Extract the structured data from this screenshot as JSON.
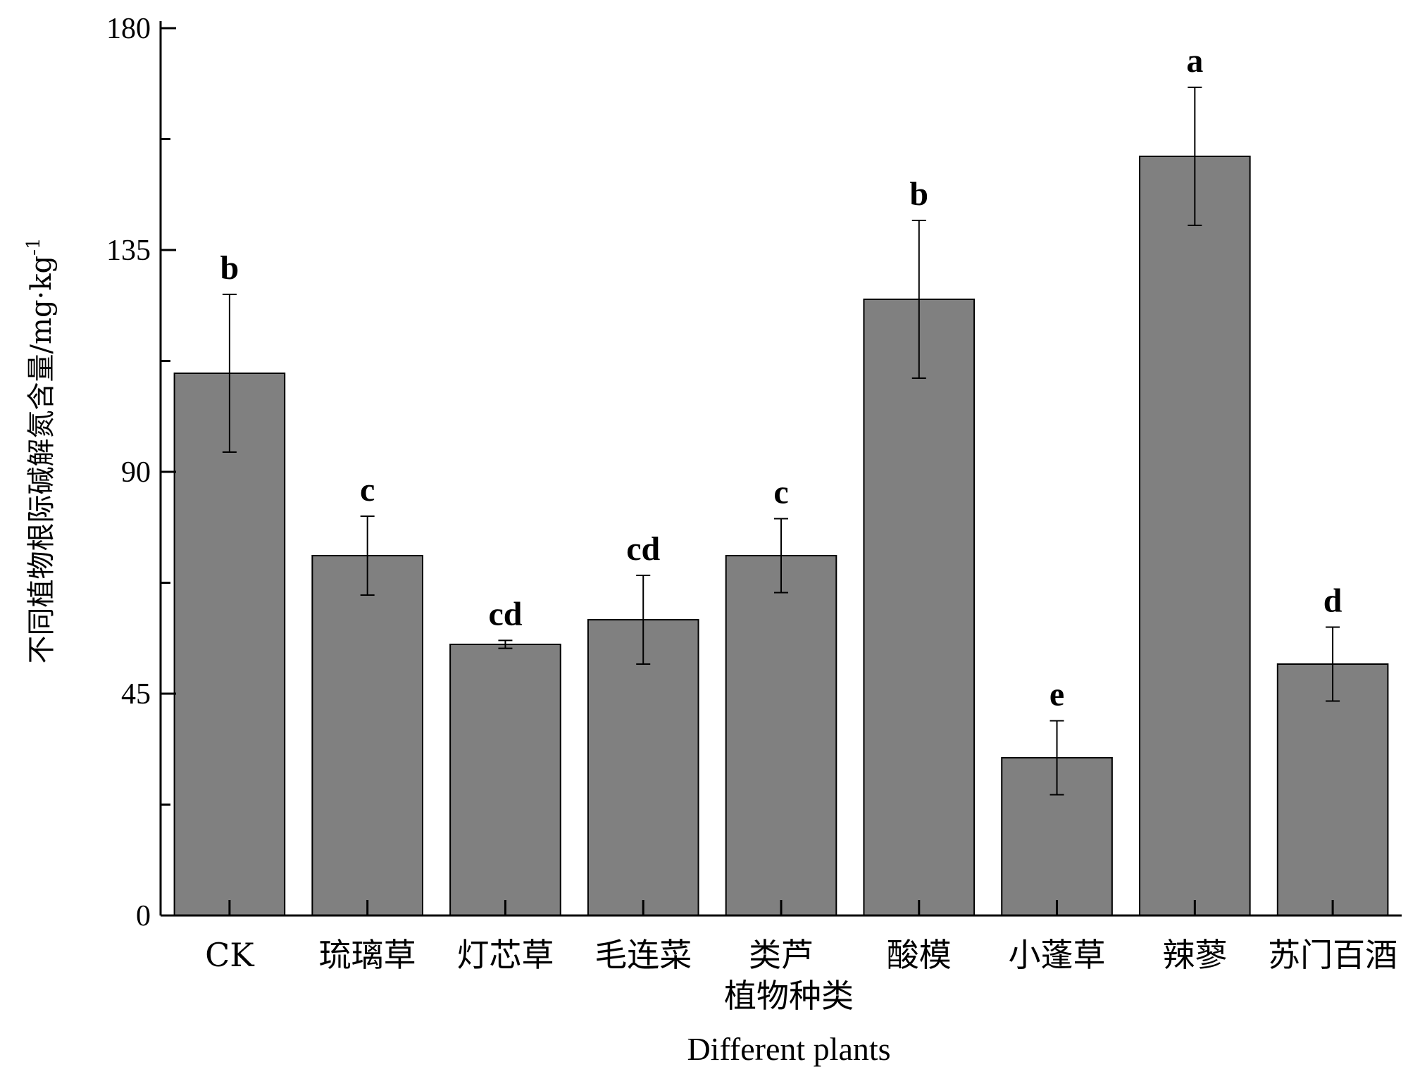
{
  "chart_data": {
    "type": "bar",
    "categories": [
      "CK",
      "琉璃草",
      "灯芯草",
      "毛连菜",
      "类芦",
      "酸模",
      "小蓬草",
      "辣蓼",
      "苏门百酒"
    ],
    "values": [
      110,
      73,
      55,
      60,
      73,
      125,
      32,
      154,
      51
    ],
    "error": [
      16,
      8,
      0.8,
      9,
      7.5,
      16,
      7.5,
      14,
      7.5
    ],
    "significance": [
      "b",
      "c",
      "cd",
      "cd",
      "c",
      "b",
      "e",
      "a",
      "d"
    ],
    "ylim": [
      0,
      180
    ],
    "yticks": [
      0,
      45,
      90,
      135,
      180
    ],
    "minor_step": 22.5,
    "xlabel_cn": "植物种类",
    "xlabel_en": "Different plants",
    "ylabel": "不同植物根际碱解氮含量/mg·kg",
    "ylabel_sup": "-1",
    "bar_color": "#808080",
    "grid": false
  }
}
